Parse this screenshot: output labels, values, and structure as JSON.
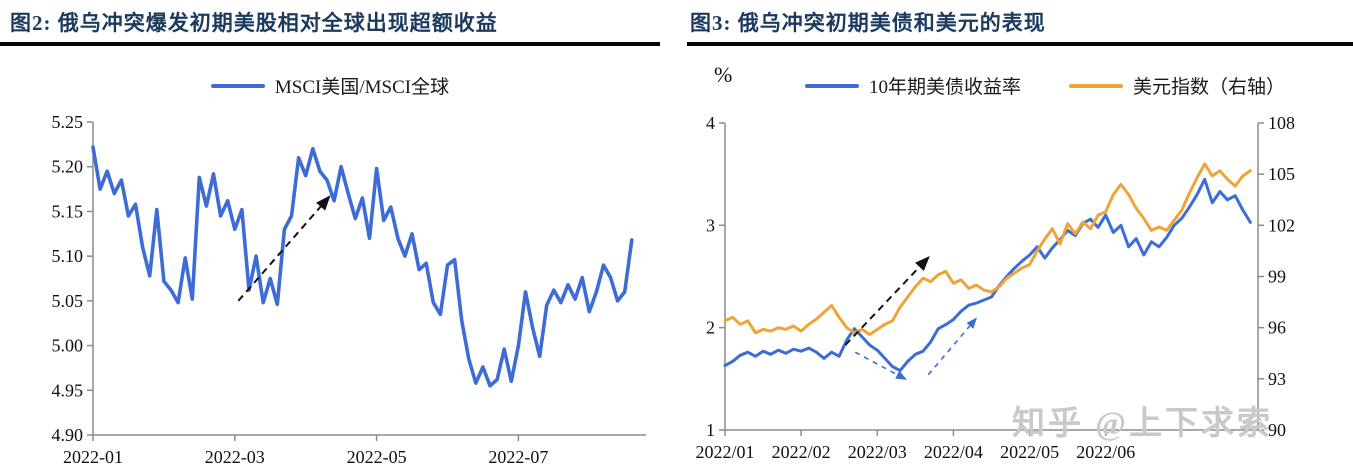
{
  "panel_left": {
    "title": "图2: 俄乌冲突爆发初期美股相对全球出现超额收益",
    "legend": [
      "MSCI美国/MSCI全球"
    ]
  },
  "panel_right": {
    "title": "图3: 俄乌冲突初期美债和美元的表现",
    "unit_label": "%",
    "legend": [
      "10年期美债收益率",
      "美元指数（右轴）"
    ]
  },
  "watermark": "知乎 @上下求索",
  "colors": {
    "line_blue": "#3d6cd6",
    "line_orange": "#f0a437",
    "title_navy": "#1c3a5e",
    "axis_gray": "#8c8c8c",
    "arrow_black": "#111111",
    "watermark_gray": "#c9c9c9"
  },
  "chart_data": [
    {
      "type": "line",
      "title": "图2: 俄乌冲突爆发初期美股相对全球出现超额收益",
      "x_range": [
        0,
        7.8
      ],
      "xticks": [
        [
          0,
          "2022-01"
        ],
        [
          2,
          "2022-03"
        ],
        [
          4,
          "2022-05"
        ],
        [
          6,
          "2022-07"
        ]
      ],
      "ylim_left": [
        4.9,
        5.25
      ],
      "yticks_left": [
        [
          4.9,
          "4.90"
        ],
        [
          4.95,
          "4.95"
        ],
        [
          5.0,
          "5.00"
        ],
        [
          5.05,
          "5.05"
        ],
        [
          5.1,
          "5.10"
        ],
        [
          5.15,
          "5.15"
        ],
        [
          5.2,
          "5.20"
        ],
        [
          5.25,
          "5.25"
        ]
      ],
      "grid": false,
      "legend_position": "top",
      "series": [
        {
          "name": "MSCI美国/MSCI全球",
          "axis": "left",
          "color": "#3d6cd6",
          "t0": 0,
          "dt": 0.1,
          "y": [
            5.222,
            5.175,
            5.195,
            5.17,
            5.185,
            5.145,
            5.158,
            5.11,
            5.078,
            5.152,
            5.072,
            5.062,
            5.048,
            5.098,
            5.052,
            5.188,
            5.156,
            5.192,
            5.145,
            5.162,
            5.13,
            5.152,
            5.062,
            5.1,
            5.048,
            5.075,
            5.046,
            5.13,
            5.145,
            5.21,
            5.19,
            5.22,
            5.195,
            5.185,
            5.162,
            5.2,
            5.17,
            5.142,
            5.165,
            5.12,
            5.198,
            5.14,
            5.155,
            5.12,
            5.1,
            5.125,
            5.085,
            5.092,
            5.048,
            5.035,
            5.09,
            5.096,
            5.028,
            4.985,
            4.958,
            4.976,
            4.955,
            4.962,
            4.996,
            4.96,
            5.0,
            5.06,
            5.02,
            4.988,
            5.045,
            5.062,
            5.048,
            5.068,
            5.052,
            5.076,
            5.038,
            5.06,
            5.09,
            5.076,
            5.05,
            5.06,
            5.118
          ]
        }
      ],
      "annotations": [
        {
          "name": "excess-return-arrow",
          "from": [
            2.05,
            5.05
          ],
          "to": [
            3.35,
            5.168
          ],
          "axis": "left",
          "color": "#111111",
          "width": 2,
          "dash": "7,5",
          "head": 15
        }
      ]
    },
    {
      "type": "line",
      "title": "图3: 俄乌冲突初期美债和美元的表现",
      "x_range": [
        0,
        7.0
      ],
      "xticks": [
        [
          0,
          "2022/01"
        ],
        [
          1,
          "2022/02"
        ],
        [
          2,
          "2022/03"
        ],
        [
          3,
          "2022/04"
        ],
        [
          4,
          "2022/05"
        ],
        [
          5,
          "2022/06"
        ]
      ],
      "ylim_left": [
        1,
        4
      ],
      "yticks_left": [
        [
          1,
          "1"
        ],
        [
          2,
          "2"
        ],
        [
          3,
          "3"
        ],
        [
          4,
          "4"
        ]
      ],
      "ylim_right": [
        90,
        108
      ],
      "yticks_right": [
        [
          90,
          "90"
        ],
        [
          93,
          "93"
        ],
        [
          96,
          "96"
        ],
        [
          99,
          "99"
        ],
        [
          102,
          "102"
        ],
        [
          105,
          "105"
        ],
        [
          108,
          "108"
        ]
      ],
      "ylabel_left": "%",
      "grid": false,
      "legend_position": "top",
      "series": [
        {
          "name": "10年期美债收益率",
          "axis": "left",
          "color": "#3d6cd6",
          "t0": 0,
          "dt": 0.1,
          "y": [
            1.63,
            1.67,
            1.73,
            1.76,
            1.72,
            1.77,
            1.74,
            1.78,
            1.75,
            1.79,
            1.77,
            1.8,
            1.76,
            1.7,
            1.76,
            1.72,
            1.88,
            1.99,
            1.91,
            1.83,
            1.78,
            1.7,
            1.62,
            1.58,
            1.67,
            1.74,
            1.77,
            1.86,
            1.99,
            2.03,
            2.08,
            2.16,
            2.22,
            2.24,
            2.27,
            2.3,
            2.41,
            2.5,
            2.58,
            2.65,
            2.71,
            2.79,
            2.68,
            2.78,
            2.86,
            2.95,
            2.9,
            3.02,
            3.06,
            2.98,
            3.1,
            2.93,
            3.0,
            2.79,
            2.87,
            2.71,
            2.84,
            2.79,
            2.88,
            3.0,
            3.07,
            3.18,
            3.3,
            3.45,
            3.22,
            3.33,
            3.25,
            3.29,
            3.15,
            3.03
          ]
        },
        {
          "name": "美元指数（右轴）",
          "axis": "right",
          "color": "#f0a437",
          "t0": 0,
          "dt": 0.1,
          "y": [
            96.4,
            96.6,
            96.2,
            96.4,
            95.7,
            95.9,
            95.8,
            96.0,
            95.9,
            96.1,
            95.8,
            96.2,
            96.5,
            96.9,
            97.3,
            96.6,
            96.0,
            95.7,
            95.9,
            95.6,
            95.9,
            96.2,
            96.4,
            97.2,
            97.8,
            98.4,
            98.9,
            98.7,
            99.1,
            99.3,
            98.6,
            98.8,
            98.3,
            98.5,
            98.2,
            98.1,
            98.4,
            98.9,
            99.2,
            99.5,
            99.7,
            100.5,
            101.2,
            101.8,
            100.9,
            102.1,
            101.5,
            102.2,
            101.8,
            102.6,
            102.8,
            103.8,
            104.4,
            103.8,
            103.0,
            102.4,
            101.7,
            101.9,
            101.7,
            102.3,
            102.9,
            103.9,
            104.8,
            105.6,
            104.9,
            105.2,
            104.7,
            104.3,
            104.9,
            105.2
          ]
        }
      ],
      "annotations": [
        {
          "name": "yield-dollar-up-arrow",
          "from": [
            1.58,
            1.83
          ],
          "to": [
            2.69,
            2.7
          ],
          "axis": "left",
          "color": "#111111",
          "width": 2,
          "dash": "7,5",
          "head": 15
        },
        {
          "name": "yield-dip-arrow",
          "from": [
            1.71,
            1.76
          ],
          "to": [
            2.39,
            1.49
          ],
          "axis": "left",
          "color": "#3d6cd6",
          "width": 1.6,
          "dash": "5,5",
          "head": 11
        },
        {
          "name": "yield-rebound-arrow",
          "from": [
            2.67,
            1.54
          ],
          "to": [
            3.31,
            2.1
          ],
          "axis": "left",
          "color": "#3d6cd6",
          "width": 1.6,
          "dash": "5,5",
          "head": 11
        }
      ]
    }
  ]
}
